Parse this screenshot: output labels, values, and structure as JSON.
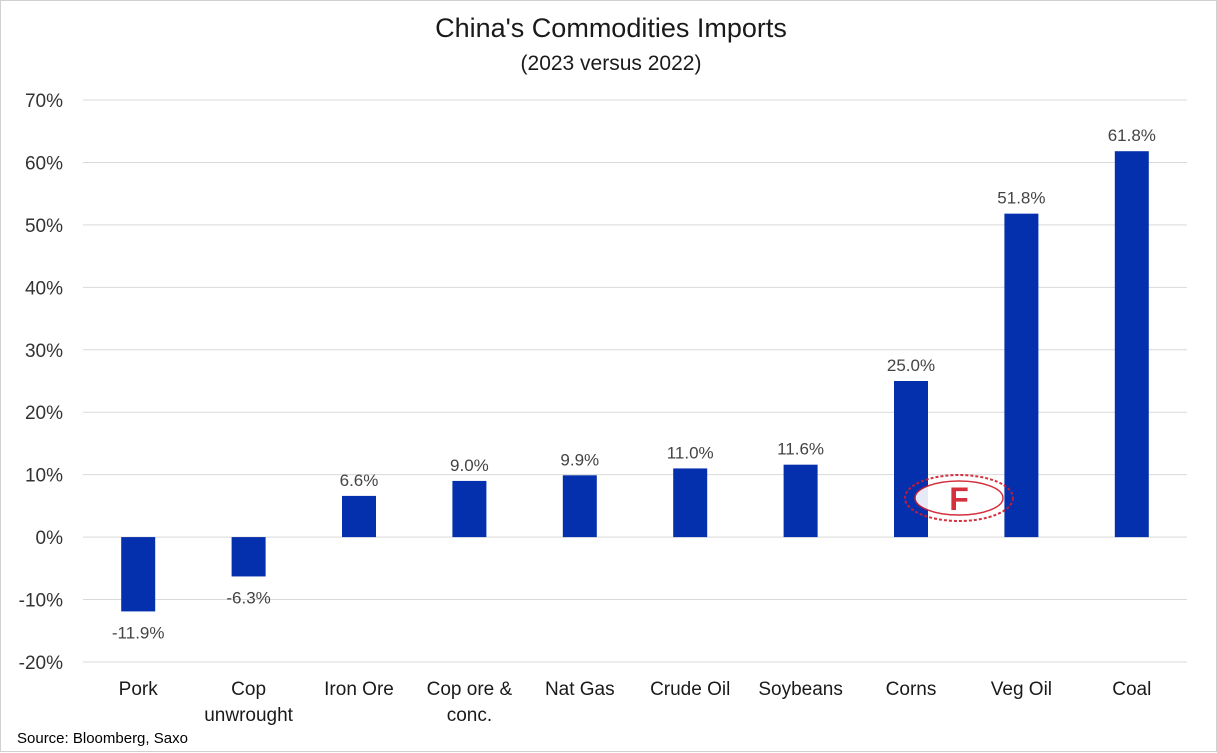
{
  "colors": {
    "bar": "#0530ad",
    "grid": "#d9d9d9",
    "text": "#1a1a1a"
  },
  "source": "Source: Bloomberg, Saxo",
  "watermark": {
    "text": "F"
  },
  "chart_data": {
    "type": "bar",
    "title": "China's Commodities Imports",
    "subtitle": "(2023 versus 2022)",
    "categories": [
      [
        "Pork"
      ],
      [
        "Cop",
        "unwrought"
      ],
      [
        "Iron Ore"
      ],
      [
        "Cop ore &",
        "conc."
      ],
      [
        "Nat Gas"
      ],
      [
        "Crude Oil"
      ],
      [
        "Soybeans"
      ],
      [
        "Corns"
      ],
      [
        "Veg Oil"
      ],
      [
        "Coal"
      ]
    ],
    "values": [
      -11.9,
      -6.3,
      6.6,
      9.0,
      9.9,
      11.0,
      11.6,
      25.0,
      51.8,
      61.8
    ],
    "data_labels": [
      "-11.9%",
      "-6.3%",
      "6.6%",
      "9.0%",
      "9.9%",
      "11.0%",
      "11.6%",
      "25.0%",
      "51.8%",
      "61.8%"
    ],
    "y_ticks": [
      70,
      60,
      50,
      40,
      30,
      20,
      10,
      0,
      -10,
      -20
    ],
    "y_tick_labels": [
      "70%",
      "60%",
      "50%",
      "40%",
      "30%",
      "20%",
      "10%",
      "0%",
      "-10%",
      "-20%"
    ],
    "ylim": [
      -20,
      70
    ],
    "grid": true,
    "legend": "none",
    "xlabel": "",
    "ylabel": ""
  }
}
